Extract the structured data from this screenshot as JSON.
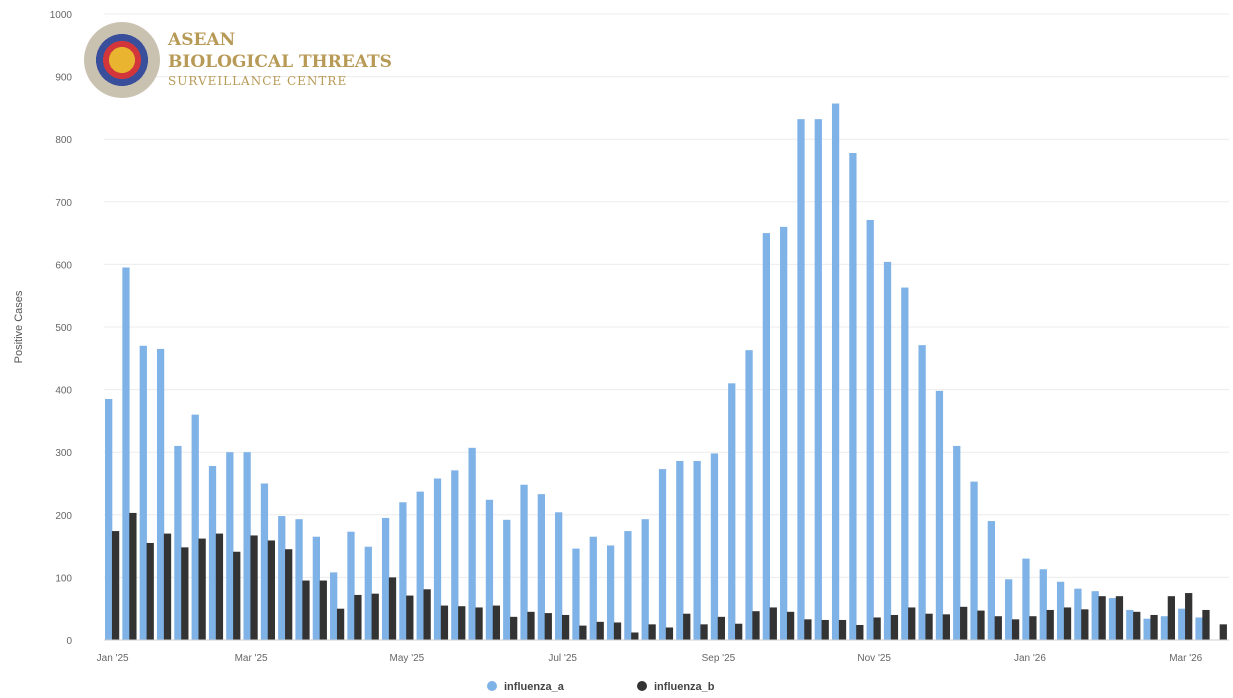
{
  "logo": {
    "line1": "ASEAN",
    "line2": "BIOLOGICAL THREATS",
    "line3": "SURVEILLANCE CENTRE"
  },
  "chart_data": {
    "type": "bar",
    "ylabel": "Positive Cases",
    "xlabel": "",
    "ylim": [
      0,
      1000
    ],
    "yticks": [
      0,
      100,
      200,
      300,
      400,
      500,
      600,
      700,
      800,
      900,
      1000
    ],
    "grid": true,
    "legend_position": "bottom",
    "x_tick_labels": [
      {
        "index": 0,
        "label": "Jan '25"
      },
      {
        "index": 8,
        "label": "Mar '25"
      },
      {
        "index": 17,
        "label": "May '25"
      },
      {
        "index": 26,
        "label": "Jul '25"
      },
      {
        "index": 35,
        "label": "Sep '25"
      },
      {
        "index": 44,
        "label": "Nov '25"
      },
      {
        "index": 53,
        "label": "Jan '26"
      },
      {
        "index": 62,
        "label": "Mar '26"
      }
    ],
    "series": [
      {
        "name": "influenza_a",
        "color": "#7fb2e6",
        "values": [
          385,
          595,
          470,
          465,
          310,
          360,
          278,
          300,
          300,
          250,
          198,
          193,
          165,
          108,
          173,
          149,
          195,
          220,
          237,
          258,
          271,
          307,
          224,
          192,
          248,
          233,
          204,
          146,
          165,
          151,
          174,
          193,
          273,
          286,
          286,
          298,
          410,
          463,
          650,
          660,
          832,
          832,
          857,
          778,
          671,
          604,
          563,
          471,
          398,
          310,
          253,
          190,
          97,
          130,
          113,
          93,
          82,
          78,
          67,
          48,
          34,
          38,
          50,
          36,
          0
        ],
        "offsets": [
          0,
          0,
          0,
          0,
          0,
          0,
          0,
          0,
          0,
          0,
          0,
          0,
          0,
          0,
          0,
          0,
          0,
          0,
          0,
          0,
          0,
          0,
          0,
          0,
          0,
          0,
          0,
          0,
          0,
          0,
          0,
          0,
          0,
          0,
          0,
          0,
          0,
          0,
          0,
          0,
          0,
          0,
          0,
          0,
          0,
          0,
          0,
          0,
          0,
          0,
          0,
          0,
          0,
          0,
          0,
          0,
          0,
          0,
          0,
          0,
          0,
          0,
          0,
          0,
          0
        ]
      },
      {
        "name": "influenza_b",
        "color": "#333333",
        "values": [
          174,
          203,
          155,
          170,
          148,
          162,
          170,
          141,
          167,
          159,
          145,
          95,
          95,
          50,
          72,
          74,
          100,
          71,
          81,
          55,
          54,
          52,
          55,
          37,
          45,
          43,
          40,
          23,
          29,
          28,
          12,
          25,
          20,
          42,
          25,
          37,
          26,
          46,
          52,
          45,
          33,
          32,
          32,
          24,
          36,
          40,
          52,
          42,
          41,
          53,
          47,
          38,
          33,
          38,
          48,
          52,
          49,
          70,
          70,
          45,
          40,
          70,
          75,
          48,
          25
        ]
      }
    ]
  }
}
